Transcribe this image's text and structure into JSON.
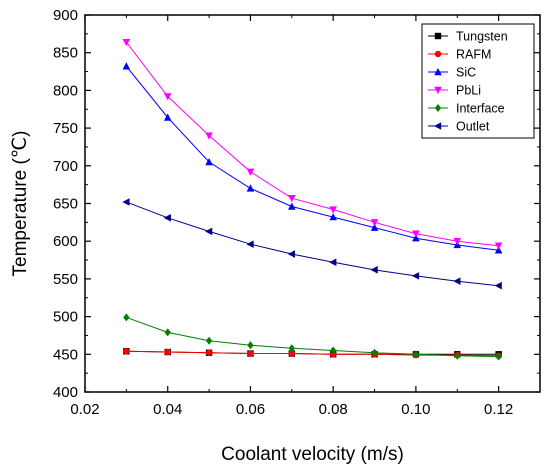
{
  "chart_data": {
    "type": "line",
    "title": "",
    "xlabel": "Coolant velocity (m/s)",
    "ylabel": "Temperature (℃)",
    "xlim": [
      0.02,
      0.13
    ],
    "ylim": [
      400,
      900
    ],
    "xticks": [
      0.02,
      0.04,
      0.06,
      0.08,
      0.1,
      0.12
    ],
    "xtick_labels": [
      "0.02",
      "0.04",
      "0.06",
      "0.08",
      "0.10",
      "0.12"
    ],
    "yticks": [
      400,
      450,
      500,
      550,
      600,
      650,
      700,
      750,
      800,
      850,
      900
    ],
    "ytick_labels": [
      "400",
      "450",
      "500",
      "550",
      "600",
      "650",
      "700",
      "750",
      "800",
      "850",
      "900"
    ],
    "grid": false,
    "legend_position": "top-right",
    "x": [
      0.03,
      0.04,
      0.05,
      0.06,
      0.07,
      0.08,
      0.09,
      0.1,
      0.11,
      0.12
    ],
    "series": [
      {
        "name": "Tungsten",
        "color": "#000000",
        "marker": "square",
        "values": [
          454,
          453,
          452,
          451,
          451,
          450,
          450,
          450,
          450,
          450
        ]
      },
      {
        "name": "RAFM",
        "color": "#ff0000",
        "marker": "circle",
        "values": [
          454,
          453,
          452,
          451,
          451,
          450,
          450,
          449,
          449,
          448
        ]
      },
      {
        "name": "SiC",
        "color": "#0000ff",
        "marker": "triangle-up",
        "values": [
          832,
          764,
          705,
          670,
          646,
          632,
          618,
          604,
          595,
          588
        ]
      },
      {
        "name": "PbLi",
        "color": "#ff00ff",
        "marker": "triangle-down",
        "values": [
          864,
          792,
          740,
          692,
          657,
          642,
          625,
          610,
          600,
          594
        ]
      },
      {
        "name": "Interface",
        "color": "#008000",
        "marker": "diamond",
        "values": [
          499,
          479,
          468,
          462,
          458,
          455,
          452,
          450,
          448,
          447
        ]
      },
      {
        "name": "Outlet",
        "color": "#00008b",
        "marker": "triangle-left",
        "values": [
          652,
          631,
          613,
          596,
          583,
          572,
          562,
          554,
          547,
          541
        ]
      }
    ]
  }
}
